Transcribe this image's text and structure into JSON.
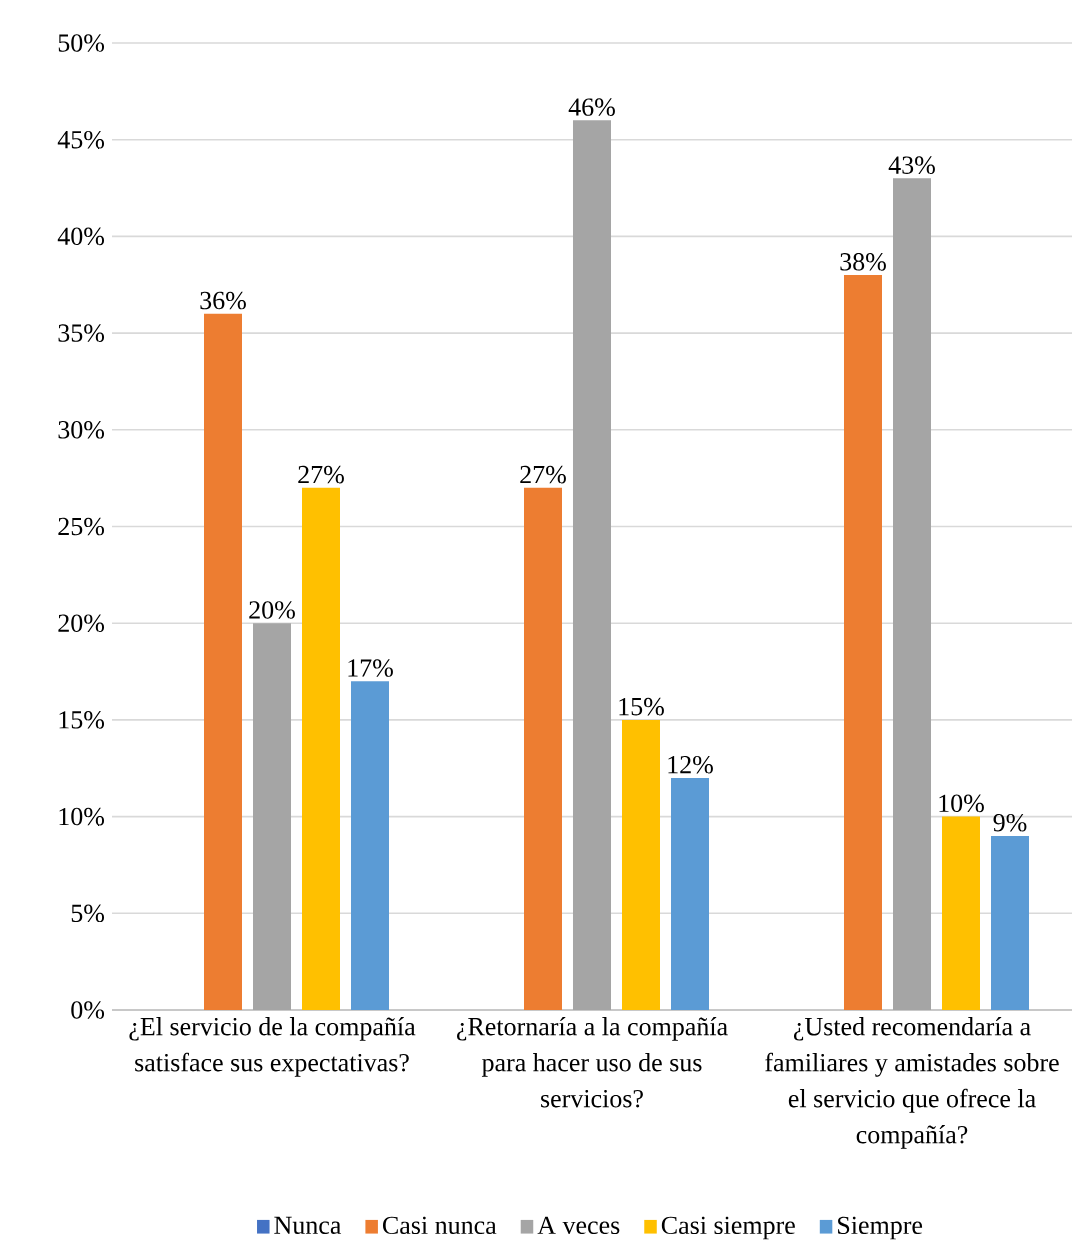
{
  "chart_data": {
    "type": "bar",
    "categories": [
      "¿El servicio de la compañía satisface sus expectativas?",
      "¿Retornaría a la compañía para hacer uso de sus servicios?",
      "¿Usted recomendaría a familiares y amistades sobre el servicio que ofrece la compañía?"
    ],
    "series": [
      {
        "name": "Nunca",
        "color": "#4472c4",
        "values": [
          null,
          null,
          null
        ]
      },
      {
        "name": "Casi nunca",
        "color": "#ed7d31",
        "values": [
          36,
          27,
          38
        ],
        "value_labels": [
          "36%",
          "27%",
          "38%"
        ]
      },
      {
        "name": "A veces",
        "color": "#a5a5a5",
        "values": [
          20,
          46,
          43
        ],
        "value_labels": [
          "20%",
          "46%",
          "43%"
        ]
      },
      {
        "name": "Casi siempre",
        "color": "#ffc000",
        "values": [
          27,
          15,
          10
        ],
        "value_labels": [
          "27%",
          "15%",
          "10%"
        ]
      },
      {
        "name": "Siempre",
        "color": "#5b9bd5",
        "values": [
          17,
          12,
          9
        ],
        "value_labels": [
          "17%",
          "12%",
          "9%"
        ]
      }
    ],
    "ylim": [
      0,
      50
    ],
    "yticks": [
      {
        "value": 0,
        "label": "0%"
      },
      {
        "value": 5,
        "label": "5%"
      },
      {
        "value": 10,
        "label": "10%"
      },
      {
        "value": 15,
        "label": "15%"
      },
      {
        "value": 20,
        "label": "20%"
      },
      {
        "value": 25,
        "label": "25%"
      },
      {
        "value": 30,
        "label": "30%"
      },
      {
        "value": 35,
        "label": "35%"
      },
      {
        "value": 40,
        "label": "40%"
      },
      {
        "value": 45,
        "label": "45%"
      },
      {
        "value": 50,
        "label": "50%"
      }
    ],
    "grid": "y",
    "legend": "bottom"
  }
}
